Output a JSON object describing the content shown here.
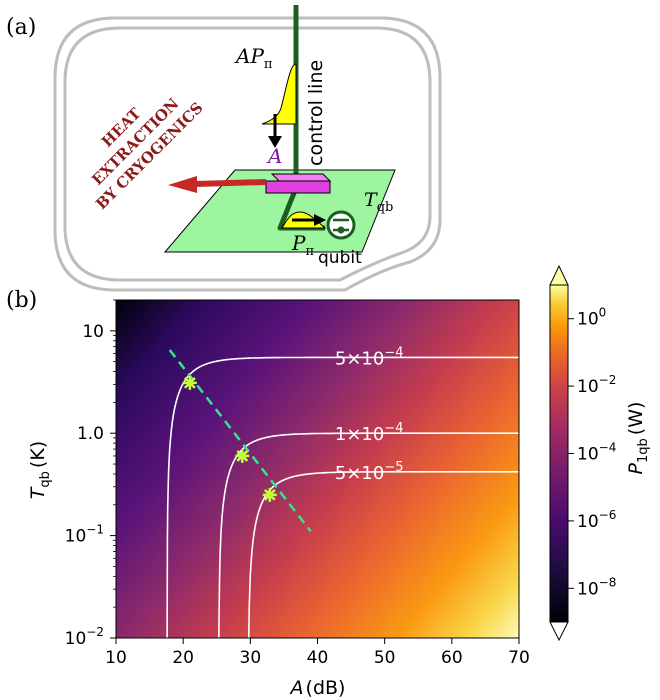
{
  "panel_labels": {
    "a": "(a)",
    "b": "(b)"
  },
  "schematic": {
    "pulse_top_label": "AP",
    "pulse_top_sub": "π",
    "attenuator_label": "A",
    "control_line_label": "control line",
    "heat_label_lines": [
      "HEAT",
      "EXTRACTION",
      "BY CRYOGENICS"
    ],
    "temp_label": "T",
    "temp_sub": "qb",
    "pulse_bottom_label": "P",
    "pulse_bottom_sub": "π",
    "qubit_label": "qubit",
    "colors": {
      "line": "#1b5e20",
      "heat_arrow": "#c62828",
      "heat_text": "#8b1a1a",
      "attenuator": "#e040e0",
      "plate": "#9ef5a0",
      "pulse": "#ffff00",
      "fridge": "#bdbdbd"
    }
  },
  "chart_data": {
    "type": "heatmap",
    "xlabel": "A",
    "xlabel_unit": "(dB)",
    "ylabel": "T",
    "ylabel_sub": "qb",
    "ylabel_unit": "(K)",
    "x_range": [
      10,
      70
    ],
    "x_ticks": [
      10,
      20,
      30,
      40,
      50,
      60,
      70
    ],
    "y_scale": "log",
    "y_range": [
      0.01,
      20
    ],
    "y_ticks": [
      {
        "value": 10,
        "label": "10"
      },
      {
        "value": 1,
        "label": "1.0"
      },
      {
        "value": 0.1,
        "label": "10",
        "exp": "−1"
      },
      {
        "value": 0.01,
        "label": "10",
        "exp": "−2"
      }
    ],
    "colorbar": {
      "label": "P",
      "label_sub": "1qb",
      "label_unit": "(W)",
      "scale": "log",
      "range": [
        1e-09,
        10
      ],
      "ticks": [
        {
          "value": 1,
          "label": "10",
          "exp": "0"
        },
        {
          "value": 0.01,
          "label": "10",
          "exp": "−2"
        },
        {
          "value": 0.0001,
          "label": "10",
          "exp": "−4"
        },
        {
          "value": 1e-06,
          "label": "10",
          "exp": "−6"
        },
        {
          "value": 1e-08,
          "label": "10",
          "exp": "−8"
        }
      ]
    },
    "contours": [
      {
        "level": "5×10",
        "exp": "−4",
        "T_inf": 5.5,
        "A_min": 17.6
      },
      {
        "level": "1×10",
        "exp": "−4",
        "T_inf": 1.0,
        "A_min": 25.3
      },
      {
        "level": "5×10",
        "exp": "−5",
        "T_inf": 0.42,
        "A_min": 29.7
      }
    ],
    "optimal_line": {
      "x": [
        18,
        39
      ],
      "y": [
        6.5,
        0.11
      ]
    },
    "optimal_points": [
      {
        "x": 21,
        "y": 3.1
      },
      {
        "x": 28.8,
        "y": 0.6
      },
      {
        "x": 32.9,
        "y": 0.25
      }
    ],
    "colors": {
      "contour": "#ffffff",
      "optimal_line": "#2ee88a",
      "point": "#c6ff3a"
    }
  }
}
